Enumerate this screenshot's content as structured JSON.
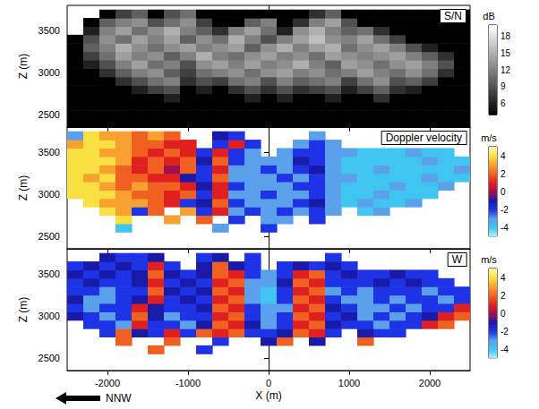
{
  "chart_data": [
    {
      "type": "heatmap",
      "title": "S/N",
      "ylabel": "Z (m)",
      "tick_labels": "y",
      "grid": false,
      "color": "gray",
      "xlim": [
        -2500,
        2500
      ],
      "xticks": [
        -2000,
        -1000,
        0,
        1000,
        2000
      ],
      "ylim": [
        2350,
        3800
      ],
      "yticks": [
        2500,
        3000,
        3500
      ],
      "colorbar": {
        "title": "dB",
        "range": [
          4,
          20
        ],
        "ticks": [
          6,
          9,
          12,
          15,
          18
        ]
      },
      "x": [
        -2400,
        -2200,
        -2000,
        -1800,
        -1600,
        -1400,
        -1200,
        -1000,
        -800,
        -600,
        -400,
        -200,
        0,
        200,
        400,
        600,
        800,
        1000,
        1200,
        1400,
        1600,
        1800,
        2000,
        2200,
        2400
      ],
      "y": [
        2400,
        2500,
        2600,
        2700,
        2800,
        2900,
        3000,
        3100,
        3200,
        3300,
        3400,
        3500,
        3600,
        3700
      ],
      "values": [
        [
          4,
          4,
          4,
          4,
          4,
          4,
          4,
          4,
          4,
          4,
          4,
          4,
          4,
          4,
          4,
          4,
          4,
          4,
          4,
          4,
          4,
          4,
          4,
          4,
          4
        ],
        [
          4,
          4,
          4,
          4,
          4,
          4,
          4,
          4,
          4,
          4,
          4,
          4,
          4,
          4,
          4,
          4,
          4,
          4,
          4,
          4,
          4,
          4,
          4,
          4,
          4
        ],
        [
          4,
          4,
          4,
          4,
          4,
          4,
          4,
          4,
          4,
          4,
          4,
          4,
          4,
          4,
          4,
          4,
          4,
          4,
          4,
          4,
          4,
          4,
          4,
          4,
          4
        ],
        [
          4,
          4,
          4,
          4,
          4,
          4,
          6,
          4,
          4,
          4,
          4,
          6,
          4,
          6,
          4,
          4,
          6,
          4,
          4,
          7,
          4,
          4,
          4,
          4,
          4
        ],
        [
          4,
          4,
          4,
          4,
          6,
          8,
          9,
          4,
          6,
          4,
          7,
          9,
          7,
          9,
          7,
          8,
          9,
          6,
          8,
          10,
          7,
          6,
          4,
          4,
          4
        ],
        [
          4,
          4,
          4,
          7,
          9,
          11,
          12,
          7,
          9,
          8,
          11,
          12,
          9,
          12,
          10,
          11,
          12,
          8,
          11,
          13,
          9,
          10,
          8,
          4,
          4
        ],
        [
          4,
          4,
          7,
          10,
          12,
          13,
          10,
          8,
          11,
          12,
          13,
          11,
          13,
          14,
          12,
          13,
          11,
          12,
          14,
          12,
          11,
          13,
          11,
          7,
          4
        ],
        [
          4,
          6,
          9,
          12,
          14,
          11,
          12,
          9,
          13,
          14,
          12,
          14,
          12,
          13,
          15,
          12,
          10,
          14,
          13,
          11,
          13,
          14,
          12,
          9,
          4
        ],
        [
          4,
          8,
          11,
          14,
          12,
          13,
          10,
          12,
          15,
          12,
          11,
          13,
          14,
          12,
          13,
          11,
          14,
          13,
          12,
          13,
          14,
          12,
          10,
          7,
          4
        ],
        [
          4,
          10,
          12,
          15,
          13,
          11,
          13,
          14,
          12,
          13,
          14,
          10,
          13,
          15,
          12,
          14,
          15,
          11,
          13,
          14,
          12,
          9,
          6,
          4,
          4
        ],
        [
          4,
          9,
          13,
          11,
          14,
          12,
          14,
          10,
          13,
          11,
          15,
          12,
          9,
          12,
          14,
          16,
          13,
          12,
          14,
          11,
          8,
          4,
          4,
          4,
          4
        ],
        [
          null,
          6,
          12,
          14,
          11,
          13,
          15,
          12,
          10,
          7,
          12,
          14,
          11,
          6,
          13,
          15,
          12,
          10,
          11,
          7,
          4,
          4,
          4,
          4,
          4
        ],
        [
          null,
          4,
          10,
          12,
          13,
          9,
          11,
          13,
          8,
          4,
          4,
          10,
          12,
          4,
          7,
          12,
          14,
          9,
          4,
          4,
          4,
          4,
          4,
          4,
          4
        ],
        [
          null,
          null,
          4,
          8,
          10,
          4,
          9,
          11,
          4,
          4,
          4,
          4,
          4,
          4,
          4,
          7,
          10,
          4,
          4,
          4,
          4,
          4,
          4,
          4,
          4
        ]
      ]
    },
    {
      "type": "heatmap",
      "title": "Doppler velocity",
      "ylabel": "Z (m)",
      "tick_labels": "y",
      "grid": false,
      "color": "jet",
      "xlim": [
        -2500,
        2500
      ],
      "xticks": [
        -2000,
        -1000,
        0,
        1000,
        2000
      ],
      "ylim": [
        2350,
        3800
      ],
      "yticks": [
        2500,
        3000,
        3500
      ],
      "colorbar": {
        "title": "m/s",
        "range": [
          -5,
          5
        ],
        "ticks": [
          -4,
          -2,
          0,
          2,
          4
        ]
      },
      "x": [
        -2400,
        -2200,
        -2000,
        -1800,
        -1600,
        -1400,
        -1200,
        -1000,
        -800,
        -600,
        -400,
        -200,
        0,
        200,
        400,
        600,
        800,
        1000,
        1200,
        1400,
        1600,
        1800,
        2000,
        2200,
        2400
      ],
      "y": [
        2400,
        2500,
        2600,
        2700,
        2800,
        2900,
        3000,
        3100,
        3200,
        3300,
        3400,
        3500,
        3600,
        3700
      ],
      "values": [
        [
          null,
          null,
          null,
          null,
          null,
          null,
          null,
          null,
          null,
          null,
          null,
          null,
          null,
          null,
          null,
          null,
          null,
          null,
          null,
          null,
          null,
          null,
          null,
          null,
          null
        ],
        [
          null,
          null,
          null,
          null,
          null,
          null,
          null,
          null,
          null,
          null,
          null,
          null,
          null,
          null,
          null,
          null,
          null,
          null,
          null,
          null,
          null,
          null,
          null,
          null,
          null
        ],
        [
          null,
          null,
          null,
          -4,
          null,
          null,
          null,
          null,
          null,
          -3,
          null,
          null,
          -2,
          null,
          null,
          null,
          null,
          null,
          null,
          null,
          null,
          null,
          null,
          null,
          null
        ],
        [
          null,
          null,
          null,
          4,
          null,
          null,
          3,
          null,
          2,
          null,
          -2,
          null,
          -3,
          -3,
          null,
          -2,
          null,
          null,
          null,
          null,
          null,
          null,
          null,
          null,
          null
        ],
        [
          null,
          null,
          4,
          3,
          -2,
          2,
          null,
          3,
          -2,
          1,
          -3,
          -2,
          -3,
          -2,
          -3,
          -2,
          -3,
          null,
          -4,
          -3,
          null,
          null,
          null,
          null,
          null
        ],
        [
          null,
          4,
          3,
          3,
          3,
          2,
          1,
          -2,
          -1,
          2,
          -2,
          -3,
          -3,
          -3,
          -2,
          -1,
          -3,
          -4,
          -3,
          -4,
          -4,
          -3,
          null,
          null,
          null
        ],
        [
          4,
          4,
          4,
          3,
          2,
          2,
          1,
          2,
          -2,
          1,
          -3,
          -3,
          -2,
          -3,
          -3,
          -2,
          -3,
          -4,
          -4,
          -3,
          -4,
          -4,
          -4,
          null,
          null
        ],
        [
          4,
          4,
          3,
          2,
          3,
          2,
          2,
          1,
          -1,
          1,
          -2,
          -3,
          -3,
          -3,
          -2,
          -2,
          -3,
          -4,
          -4,
          -4,
          -3,
          -4,
          -4,
          -3,
          null
        ],
        [
          4,
          3,
          4,
          2,
          2,
          1,
          1,
          -1,
          -2,
          2,
          -3,
          -3,
          -3,
          -2,
          -3,
          -2,
          -3,
          -3,
          -4,
          -4,
          -4,
          -4,
          -3,
          -4,
          -4
        ],
        [
          4,
          4,
          3,
          2,
          1,
          2,
          0,
          2,
          -2,
          1,
          -3,
          -3,
          -2,
          -3,
          -2,
          -1,
          -3,
          -4,
          -4,
          -3,
          -4,
          -4,
          -4,
          -4,
          -3
        ],
        [
          4,
          4,
          4,
          3,
          1,
          2,
          1,
          2,
          -1,
          2,
          -2,
          -3,
          -3,
          -3,
          -1,
          -2,
          -3,
          -4,
          -4,
          -4,
          -4,
          -4,
          -3,
          -4,
          -4
        ],
        [
          4,
          4,
          3,
          3,
          2,
          1,
          2,
          1,
          -2,
          1,
          -2,
          -3,
          null,
          -3,
          -2,
          -2,
          -3,
          -3,
          -4,
          -4,
          -4,
          -3,
          -4,
          -4,
          null
        ],
        [
          3,
          4,
          4,
          3,
          2,
          2,
          1,
          1,
          null,
          -2,
          1,
          -2,
          null,
          null,
          -3,
          -2,
          -3,
          null,
          null,
          null,
          null,
          null,
          null,
          null,
          null
        ],
        [
          -3,
          4,
          3,
          3,
          2,
          3,
          2,
          null,
          null,
          -1,
          -2,
          null,
          null,
          null,
          null,
          -3,
          null,
          null,
          null,
          null,
          null,
          null,
          null,
          null,
          null
        ]
      ]
    },
    {
      "type": "heatmap",
      "title": "W",
      "xlabel": "X (m)",
      "ylabel": "Z (m)",
      "grid": false,
      "color": "jet",
      "xlim": [
        -2500,
        2500
      ],
      "xticks": [
        -2000,
        -1000,
        0,
        1000,
        2000
      ],
      "ylim": [
        2350,
        3800
      ],
      "yticks": [
        2500,
        3000,
        3500
      ],
      "colorbar": {
        "title": "m/s",
        "range": [
          -5,
          5
        ],
        "ticks": [
          -4,
          -2,
          0,
          2,
          4
        ]
      },
      "annotations": [
        {
          "text": "NNW"
        }
      ],
      "x": [
        -2400,
        -2200,
        -2000,
        -1800,
        -1600,
        -1400,
        -1200,
        -1000,
        -800,
        -600,
        -400,
        -200,
        0,
        200,
        400,
        600,
        800,
        1000,
        1200,
        1400,
        1600,
        1800,
        2000,
        2200,
        2400
      ],
      "y": [
        2400,
        2500,
        2600,
        2700,
        2800,
        2900,
        3000,
        3100,
        3200,
        3300,
        3400,
        3500,
        3600,
        3700
      ],
      "values": [
        [
          null,
          null,
          null,
          null,
          null,
          null,
          null,
          null,
          null,
          null,
          null,
          null,
          null,
          null,
          null,
          null,
          null,
          null,
          null,
          null,
          null,
          null,
          null,
          null,
          null
        ],
        [
          null,
          null,
          null,
          null,
          null,
          null,
          null,
          null,
          null,
          null,
          null,
          null,
          null,
          null,
          null,
          null,
          null,
          null,
          null,
          null,
          null,
          null,
          null,
          null,
          null
        ],
        [
          null,
          null,
          null,
          null,
          null,
          2,
          null,
          null,
          -2,
          null,
          null,
          null,
          null,
          null,
          null,
          null,
          null,
          null,
          null,
          null,
          null,
          null,
          null,
          null,
          null
        ],
        [
          null,
          null,
          null,
          2,
          null,
          null,
          2,
          null,
          null,
          -2,
          null,
          null,
          -1,
          2,
          null,
          -1,
          null,
          null,
          2,
          null,
          null,
          null,
          null,
          null,
          null
        ],
        [
          null,
          null,
          -2,
          2,
          -1,
          -2,
          1,
          -2,
          2,
          1,
          2,
          -2,
          -2,
          -1,
          2,
          1,
          -2,
          null,
          -1,
          -2,
          -2,
          null,
          null,
          null,
          null
        ],
        [
          null,
          -2,
          -2,
          -3,
          1,
          -2,
          -2,
          -3,
          -1,
          2,
          1,
          -1,
          -3,
          -2,
          1,
          2,
          -1,
          -2,
          -2,
          -3,
          -2,
          -2,
          1,
          2,
          null
        ],
        [
          -1,
          -2,
          -3,
          -2,
          2,
          -1,
          -3,
          -2,
          -2,
          1,
          2,
          -2,
          -3,
          -2,
          2,
          1,
          -2,
          -1,
          -3,
          -2,
          -3,
          -2,
          -1,
          1,
          2
        ],
        [
          -2,
          -3,
          -2,
          -2,
          1,
          -1,
          -2,
          -2,
          -1,
          2,
          1,
          -2,
          -3,
          -3,
          1,
          2,
          -1,
          -2,
          -3,
          -3,
          -2,
          -3,
          -2,
          -2,
          1
        ],
        [
          -1,
          -3,
          -3,
          -2,
          -1,
          1,
          -2,
          -1,
          -2,
          1,
          2,
          -3,
          -4,
          -2,
          2,
          1,
          -2,
          -3,
          -3,
          -2,
          -3,
          -2,
          -2,
          -3,
          -2
        ],
        [
          -2,
          -2,
          -3,
          -2,
          -2,
          2,
          -1,
          -2,
          -1,
          2,
          1,
          -3,
          -4,
          -2,
          1,
          2,
          -3,
          -2,
          -3,
          -2,
          -2,
          -2,
          -3,
          -2,
          -2
        ],
        [
          -2,
          -1,
          -2,
          -2,
          -1,
          1,
          -2,
          -1,
          -2,
          1,
          2,
          -3,
          -3,
          -1,
          2,
          1,
          -2,
          -2,
          -2,
          -1,
          -2,
          -1,
          -2,
          -2,
          null
        ],
        [
          -1,
          -2,
          -1,
          -2,
          -1,
          2,
          -1,
          -2,
          -1,
          2,
          1,
          -2,
          -3,
          -2,
          1,
          2,
          -2,
          -1,
          -2,
          -2,
          -1,
          -2,
          -2,
          null,
          null
        ],
        [
          -2,
          -1,
          -2,
          -1,
          -2,
          1,
          -2,
          null,
          -1,
          2,
          -1,
          -2,
          null,
          -2,
          -1,
          -2,
          -1,
          -2,
          null,
          null,
          null,
          null,
          null,
          null,
          null
        ],
        [
          null,
          null,
          -1,
          -2,
          -2,
          -1,
          null,
          null,
          -2,
          -1,
          null,
          -2,
          null,
          null,
          null,
          null,
          -2,
          null,
          null,
          null,
          null,
          null,
          null,
          null,
          null
        ]
      ]
    }
  ]
}
